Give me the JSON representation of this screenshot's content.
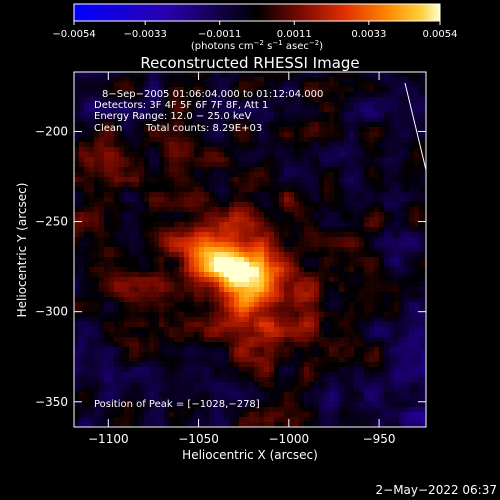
{
  "chart_data": {
    "type": "heatmap",
    "title": "Reconstructed RHESSI Image",
    "xlabel": "Heliocentric X (arcsec)",
    "ylabel": "Heliocentric Y (arcsec)",
    "xlim": [
      -1119,
      -924
    ],
    "ylim": [
      -364,
      -167
    ],
    "x_ticks": [
      -1100,
      -1050,
      -1000,
      -950
    ],
    "x_tick_labels": [
      "−1100",
      "−1050",
      "−1000",
      "−950"
    ],
    "y_ticks": [
      -200,
      -250,
      -300,
      -350
    ],
    "y_tick_labels": [
      "−200",
      "−250",
      "−300",
      "−350"
    ],
    "colorbar": {
      "min": -0.0054,
      "max": 0.0054,
      "ticks": [
        -0.0054,
        -0.0033,
        -0.0011,
        0.0011,
        0.0033,
        0.0054
      ],
      "tick_labels": [
        "−0.0054",
        "−0.0033",
        "−0.0011",
        "0.0011",
        "0.0033",
        "0.0054"
      ],
      "units_prefix": "(photons cm",
      "units_exp1": "−2",
      "units_mid1": " s",
      "units_exp2": "−1",
      "units_mid2": " asec",
      "units_exp3": "−2",
      "units_suffix": ")"
    },
    "peak": {
      "x": -1028,
      "y": -278
    },
    "annotations": {
      "time_range": "8−Sep−2005 01:06:04.000 to 01:12:04.000",
      "detectors": "Detectors: 3F 4F 5F 6F 7F 8F, Att 1",
      "energy_range": "Energy Range: 12.0 − 25.0 keV",
      "algorithm": "Clean",
      "total_counts": "Total counts: 8.29E+03",
      "peak_label": "Position of Peak = [−1028,−278]"
    },
    "grid": false
  },
  "footer": {
    "timestamp": "2−May−2022 06:37"
  }
}
